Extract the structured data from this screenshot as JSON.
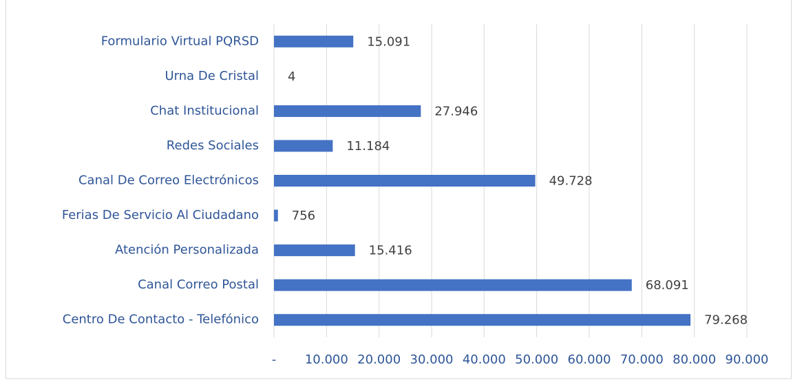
{
  "chart_data": {
    "type": "barh",
    "categories": [
      "Formulario Virtual PQRSD",
      "Urna De Cristal",
      "Chat Institucional",
      "Redes Sociales",
      "Canal De Correo Electrónicos",
      "Ferias De Servicio Al Ciudadano",
      "Atención Personalizada",
      "Canal Correo Postal",
      "Centro De Contacto - Telefónico"
    ],
    "values": [
      15091,
      4,
      27946,
      11184,
      49728,
      756,
      15416,
      68091,
      79268
    ],
    "value_labels": [
      "15.091",
      "4",
      "27.946",
      "11.184",
      "49.728",
      "756",
      "15.416",
      "68.091",
      "79.268"
    ],
    "color": "#4472c4",
    "xlim": [
      0,
      90000
    ],
    "xticks": [
      {
        "value": 0,
        "label": "-"
      },
      {
        "value": 10000,
        "label": "10.000"
      },
      {
        "value": 20000,
        "label": "20.000"
      },
      {
        "value": 30000,
        "label": "30.000"
      },
      {
        "value": 40000,
        "label": "40.000"
      },
      {
        "value": 50000,
        "label": "50.000"
      },
      {
        "value": 60000,
        "label": "60.000"
      },
      {
        "value": 70000,
        "label": "70.000"
      },
      {
        "value": 80000,
        "label": "80.000"
      },
      {
        "value": 90000,
        "label": "90.000"
      }
    ],
    "grid": true
  }
}
